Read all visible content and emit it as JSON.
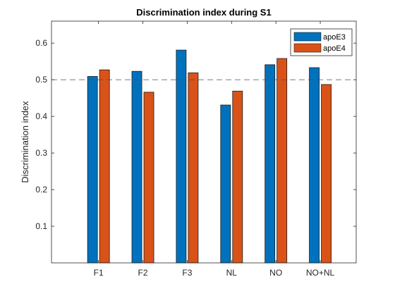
{
  "chart_data": {
    "type": "bar",
    "title": "Discrimination index during S1",
    "xlabel": "",
    "ylabel": "Discrimination index",
    "categories": [
      "F1",
      "F2",
      "F3",
      "NL",
      "NO",
      "NO+NL"
    ],
    "series": [
      {
        "name": "apoE3",
        "color": "#0072BD",
        "values": [
          0.509,
          0.523,
          0.581,
          0.431,
          0.541,
          0.533
        ]
      },
      {
        "name": "apoE4",
        "color": "#D95319",
        "values": [
          0.527,
          0.466,
          0.519,
          0.469,
          0.558,
          0.487
        ]
      }
    ],
    "ylim": [
      0,
      0.66
    ],
    "yticks": [
      0.1,
      0.2,
      0.3,
      0.4,
      0.5,
      0.6
    ],
    "ytick_labels": [
      "0.1",
      "0.2",
      "0.3",
      "0.4",
      "0.5",
      "0.6"
    ],
    "reference_line": {
      "y": 0.5,
      "style": "dashed"
    },
    "legend_position": "top-right",
    "grid": false
  }
}
